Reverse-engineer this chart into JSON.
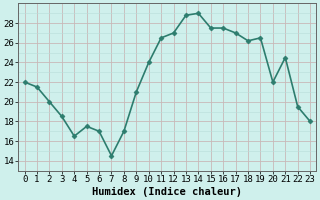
{
  "x": [
    0,
    1,
    2,
    3,
    4,
    5,
    6,
    7,
    8,
    9,
    10,
    11,
    12,
    13,
    14,
    15,
    16,
    17,
    18,
    19,
    20,
    21,
    22,
    23
  ],
  "y": [
    22,
    21.5,
    20,
    18.5,
    16.5,
    17.5,
    17,
    14.5,
    17,
    21,
    24,
    26.5,
    27,
    28.8,
    29,
    27.5,
    27.5,
    27,
    26.2,
    26.5,
    22,
    24.5,
    19.5,
    18
  ],
  "line_color": "#2d7d6e",
  "marker": "D",
  "marker_size": 2.5,
  "bg_color": "#cff0ec",
  "grid_color_major": "#c8b8b8",
  "grid_color_minor": "#b8deda",
  "xlabel": "Humidex (Indice chaleur)",
  "xlim": [
    -0.5,
    23.5
  ],
  "ylim": [
    13,
    30
  ],
  "yticks": [
    14,
    16,
    18,
    20,
    22,
    24,
    26,
    28
  ],
  "xticks": [
    0,
    1,
    2,
    3,
    4,
    5,
    6,
    7,
    8,
    9,
    10,
    11,
    12,
    13,
    14,
    15,
    16,
    17,
    18,
    19,
    20,
    21,
    22,
    23
  ],
  "tick_fontsize": 6.5,
  "xlabel_fontsize": 7.5,
  "line_width": 1.2
}
